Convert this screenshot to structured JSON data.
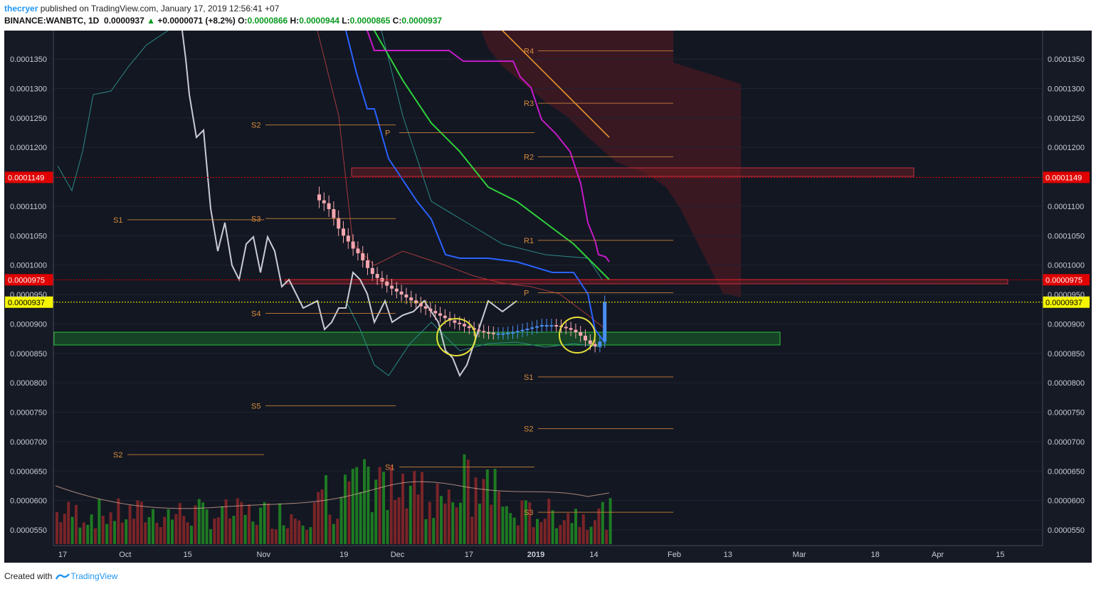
{
  "header": {
    "username": "thecryer",
    "published_text": " published on TradingView.com, January 17, 2019 12:56:41 +07",
    "symbol": "BINANCE:WANBTC, 1D",
    "price": "0.0000937",
    "change": "+0.0000071 (+8.2%)",
    "o_label": "O:",
    "o_value": "0.0000866",
    "h_label": "H:",
    "h_value": "0.0000944",
    "l_label": "L:",
    "l_value": "0.0000865",
    "c_label": "C:",
    "c_value": "0.0000937"
  },
  "footer": {
    "created_with": "Created with",
    "brand": "TradingView"
  },
  "colors": {
    "background": "#161a25",
    "up": "#4a8ff5",
    "down": "#f4a6ae",
    "vol_up": "#1e7a23",
    "vol_down": "#7a2428",
    "red_marker": "#e00000",
    "yellow_marker": "#f5f500",
    "pivot": "#d98b3c",
    "green_zone": "#1a7a2a",
    "red_zone": "#7a1c22"
  },
  "chart_data": {
    "type": "candlestick",
    "timeframe": "1D",
    "yticks": [
      "0.0001350",
      "0.0001300",
      "0.0001250",
      "0.0001200",
      "0.0001100",
      "0.0001050",
      "0.0001000",
      "0.0000950",
      "0.0000900",
      "0.0000850",
      "0.0000800",
      "0.0000750",
      "0.0000700",
      "0.0000650",
      "0.0000600",
      "0.0000550"
    ],
    "ytick_values": [
      0.000135,
      0.00013,
      0.000125,
      0.00012,
      0.00011,
      0.000105,
      0.0001,
      9.5e-05,
      9e-05,
      8.5e-05,
      8e-05,
      7.5e-05,
      7e-05,
      6.5e-05,
      6e-05,
      5.5e-05
    ],
    "xticks": [
      {
        "label": "17",
        "date": "2018-09-17"
      },
      {
        "label": "Oct",
        "date": "2018-10-01"
      },
      {
        "label": "15",
        "date": "2018-10-15"
      },
      {
        "label": "Nov",
        "date": "2018-11-01"
      },
      {
        "label": "19",
        "date": "2018-11-19"
      },
      {
        "label": "Dec",
        "date": "2018-12-01"
      },
      {
        "label": "17",
        "date": "2018-12-17"
      },
      {
        "label": "2019",
        "date": "2019-01-01"
      },
      {
        "label": "14",
        "date": "2019-01-14"
      },
      {
        "label": "Feb",
        "date": "2019-02-01"
      },
      {
        "label": "13",
        "date": "2019-02-13"
      },
      {
        "label": "Mar",
        "date": "2019-03-01"
      },
      {
        "label": "18",
        "date": "2019-03-18"
      },
      {
        "label": "Apr",
        "date": "2019-04-01"
      },
      {
        "label": "15",
        "date": "2019-04-15"
      }
    ],
    "markers": [
      {
        "label": "0.0001149",
        "value": 0.0001149,
        "style": "red"
      },
      {
        "label": "0.0000975",
        "value": 9.75e-05,
        "style": "red"
      },
      {
        "label": "0.0000937",
        "value": 9.37e-05,
        "style": "yellow"
      }
    ],
    "pivot_labels": [
      {
        "label": "R4",
        "value": 0.0001364
      },
      {
        "label": "R3",
        "value": 0.0001275
      },
      {
        "label": "R2",
        "value": 0.0001184
      },
      {
        "label": "P",
        "value": 0.0001225
      },
      {
        "label": "S2",
        "value": 0.0001238
      },
      {
        "label": "S1",
        "value": 0.0001077
      },
      {
        "label": "S3",
        "value": 0.0001079
      },
      {
        "label": "R1",
        "value": 0.0001042
      },
      {
        "label": "P",
        "value": 9.53e-05
      },
      {
        "label": "S4",
        "value": 9.18e-05
      },
      {
        "label": "S1",
        "value": 8.1e-05
      },
      {
        "label": "S5",
        "value": 7.61e-05
      },
      {
        "label": "S2",
        "value": 7.22e-05
      },
      {
        "label": "S2",
        "value": 6.78e-05
      },
      {
        "label": "S1",
        "value": 6.57e-05
      },
      {
        "label": "S3",
        "value": 5.8e-05
      }
    ],
    "close_series": [
      0.000112,
      0.000111,
      0.0001105,
      0.0001095,
      0.000108,
      0.0001062,
      0.000105,
      0.000104,
      0.0001028,
      0.000102,
      0.0001008,
      9.95e-05,
      9.85e-05,
      9.78e-05,
      9.72e-05,
      9.65e-05,
      9.6e-05,
      9.55e-05,
      9.5e-05,
      9.45e-05,
      9.4e-05,
      9.35e-05,
      9.3e-05,
      9.26e-05,
      9.22e-05,
      9.18e-05,
      9.14e-05,
      9.1e-05,
      9.06e-05,
      9.02e-05,
      9e-05,
      8.96e-05,
      8.93e-05,
      8.9e-05,
      8.88e-05,
      8.86e-05,
      8.85e-05,
      8.84e-05,
      8.84e-05,
      8.84e-05,
      8.85e-05,
      8.86e-05,
      8.88e-05,
      8.9e-05,
      8.92e-05,
      8.94e-05,
      8.96e-05,
      8.98e-05,
      8.98e-05,
      8.98e-05,
      8.97e-05,
      8.95e-05,
      8.93e-05,
      8.9e-05,
      8.86e-05,
      8.8e-05,
      8.72e-05,
      8.66e-05,
      8.62e-05,
      8.7e-05,
      9.37e-05
    ]
  }
}
